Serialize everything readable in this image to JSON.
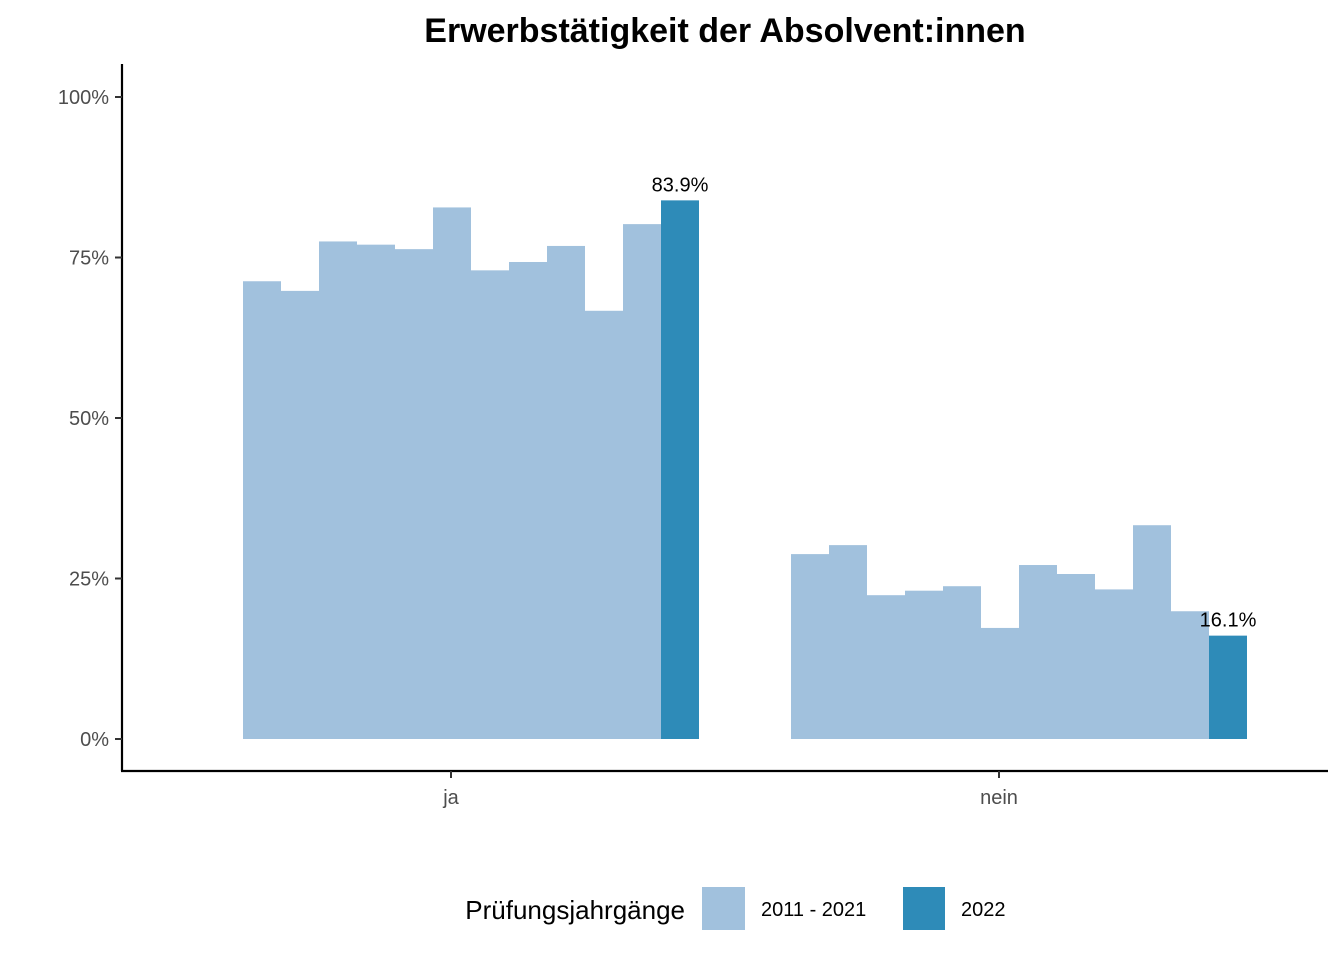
{
  "chart_data": {
    "type": "bar",
    "title": "Erwerbstätigkeit der Absolvent:innen",
    "categories": [
      "ja",
      "nein"
    ],
    "ylim": [
      0,
      100
    ],
    "yticks": [
      0,
      25,
      50,
      75,
      100
    ],
    "ytick_labels": [
      "0%",
      "25%",
      "50%",
      "75%",
      "100%"
    ],
    "grid": false,
    "legend": {
      "title": "Prüfungsjahrgänge",
      "position": "bottom",
      "entries": [
        "2011 - 2021",
        "2022"
      ]
    },
    "colors": {
      "2011 - 2021": "#a1c1dd",
      "2022": "#2e8bb8"
    },
    "bars": {
      "ja": {
        "history": [
          71.3,
          69.8,
          77.5,
          77.0,
          76.3,
          82.8,
          73.0,
          74.3,
          76.8,
          66.7,
          80.2
        ],
        "current": 83.9,
        "current_label": "83.9%"
      },
      "nein": {
        "history": [
          28.8,
          30.2,
          22.4,
          23.1,
          23.8,
          17.3,
          27.1,
          25.7,
          23.3,
          33.3,
          19.9
        ],
        "current": 16.1,
        "current_label": "16.1%"
      }
    }
  }
}
